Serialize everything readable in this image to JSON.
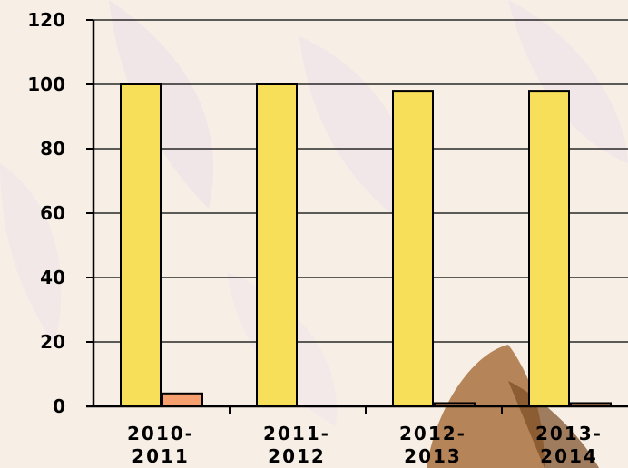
{
  "chart_data": {
    "type": "bar",
    "categories": [
      [
        "2010-",
        "2011"
      ],
      [
        "2011-",
        "2012"
      ],
      [
        "2012-",
        "2013"
      ],
      [
        "2013-",
        "2014"
      ]
    ],
    "series": [
      {
        "values": [
          100,
          100,
          98,
          98
        ],
        "color": "#f8df5a"
      },
      {
        "values": [
          4,
          0,
          1,
          1
        ],
        "color": "#f5a06e"
      }
    ],
    "ylim": [
      0,
      120
    ],
    "yticks": [
      0,
      20,
      40,
      60,
      80,
      100,
      120
    ],
    "grid": true,
    "title": "",
    "xlabel": "",
    "ylabel": ""
  },
  "colors": {
    "background": "#f7efe6",
    "decor_petal": "#ebe0ea",
    "decor_butterfly": "#a9713e"
  }
}
